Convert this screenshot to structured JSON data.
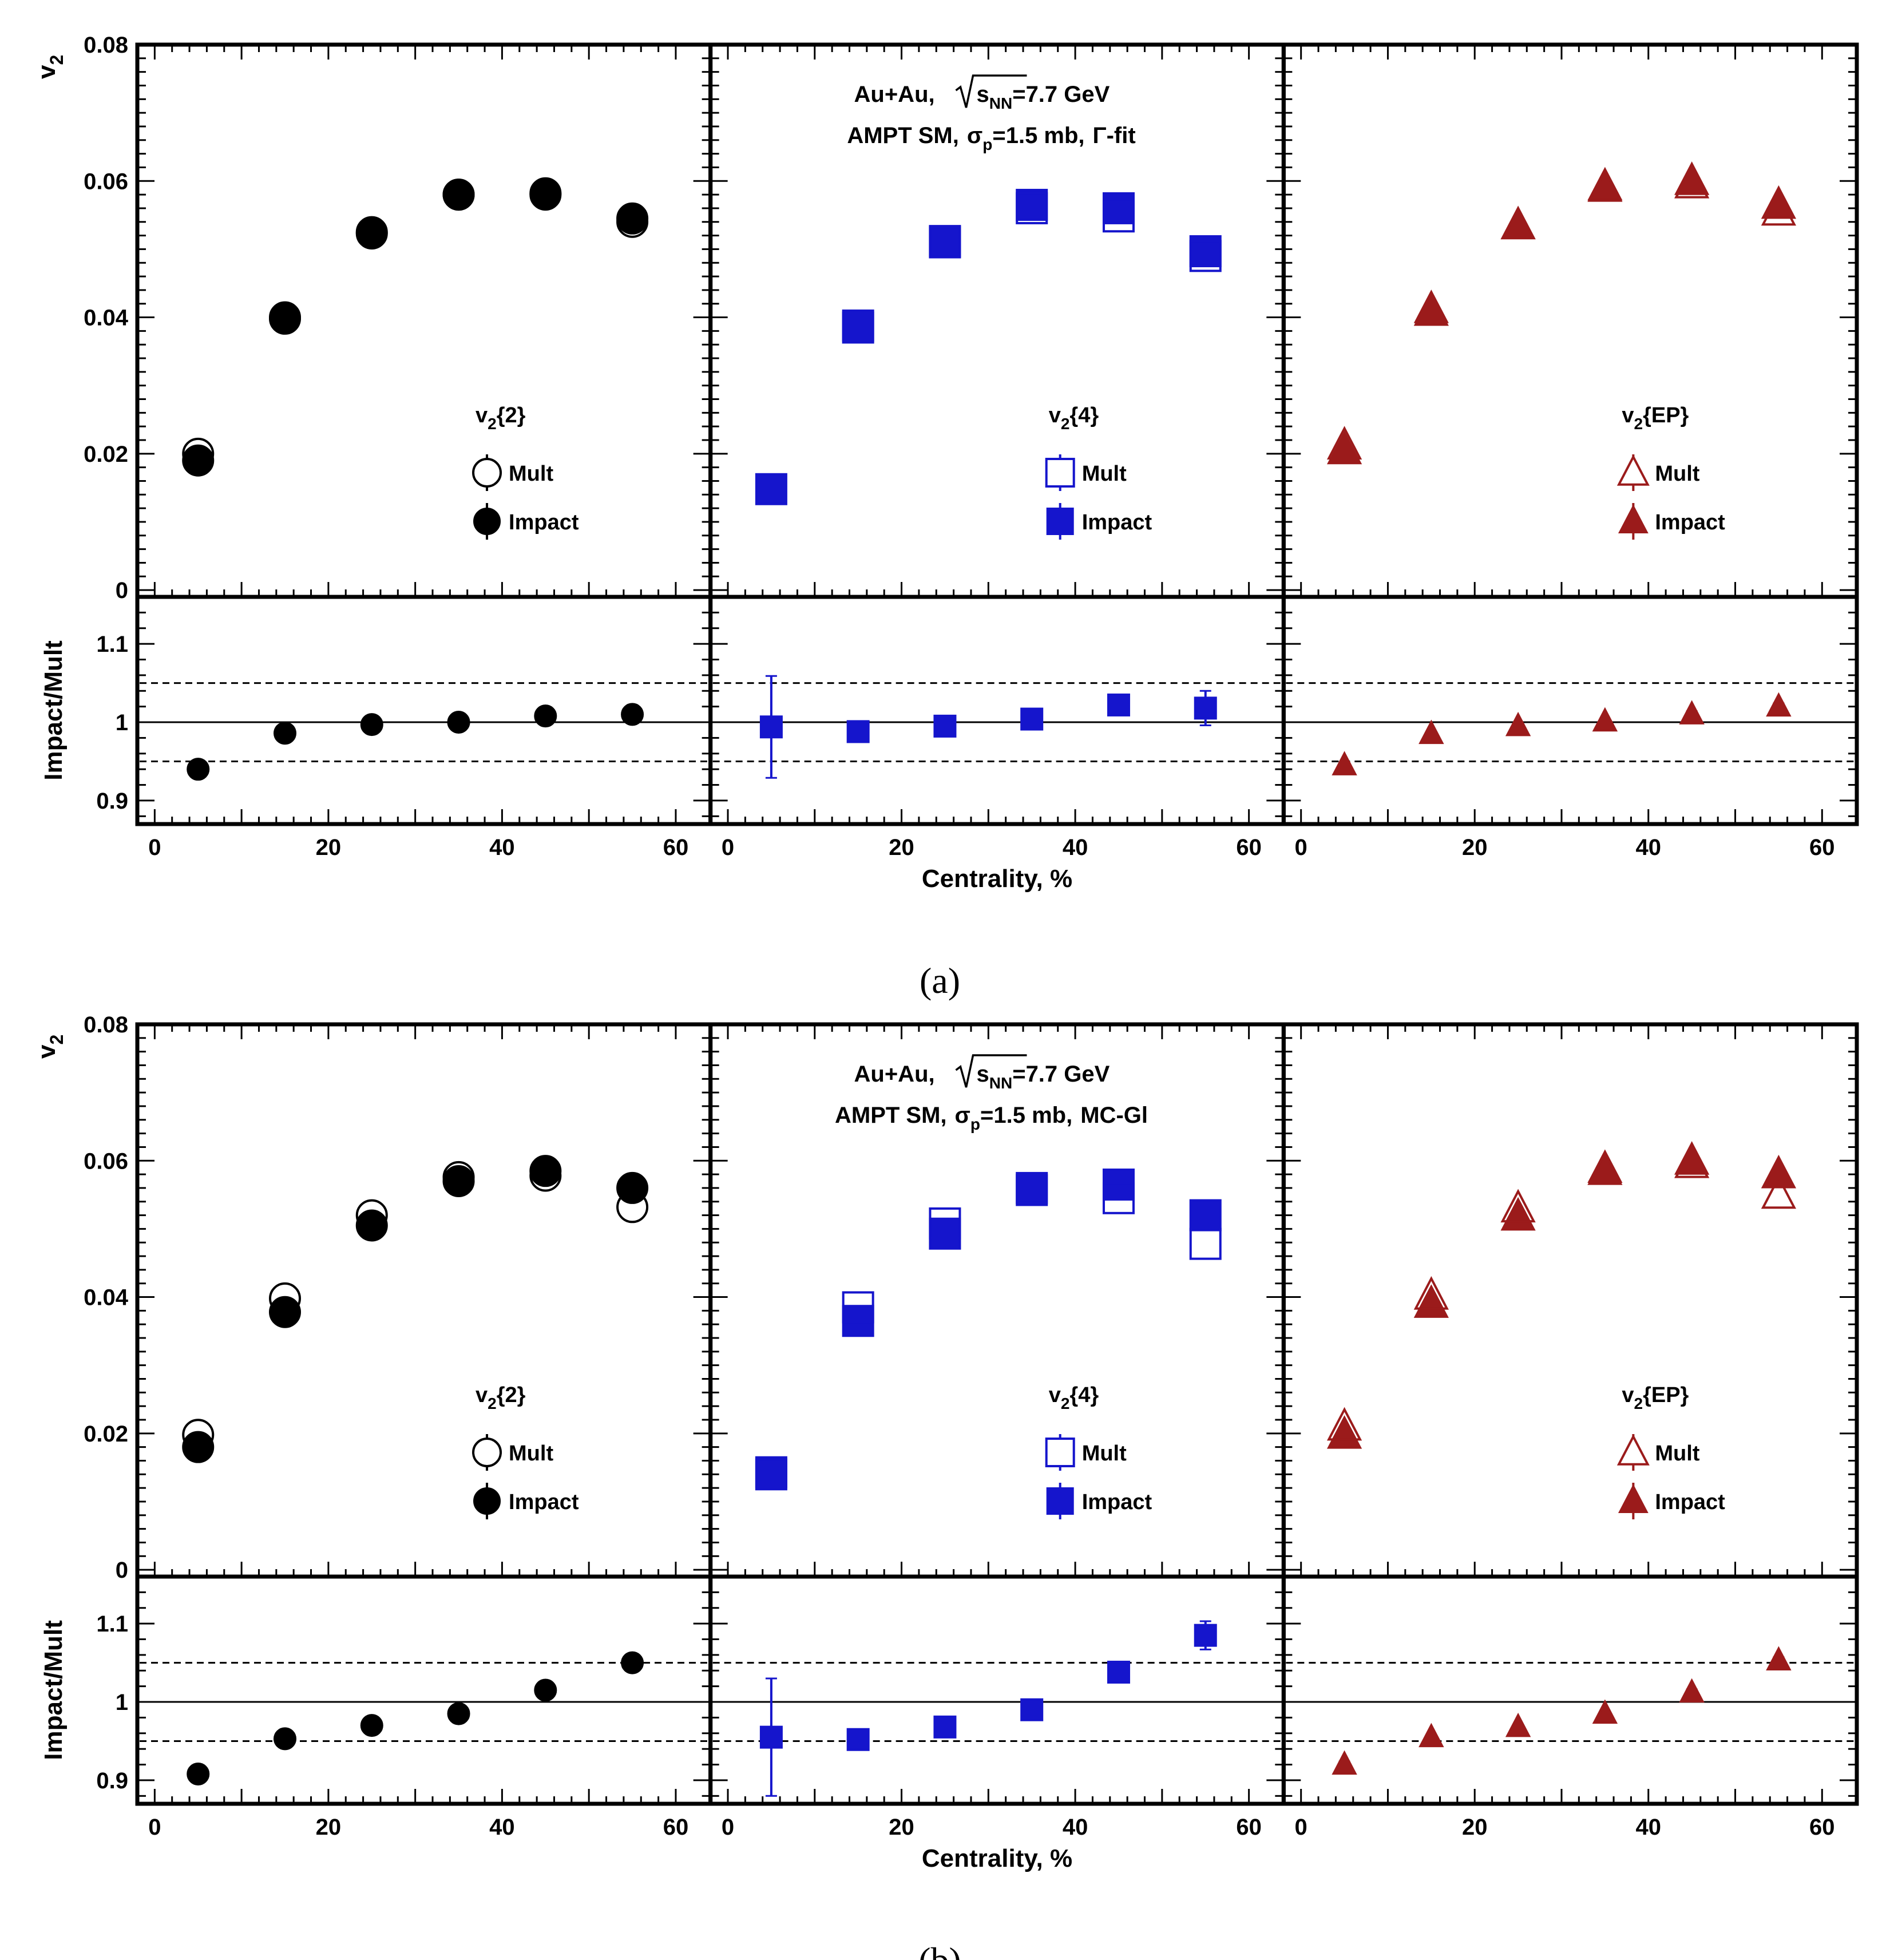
{
  "colors": {
    "v2_2": "#000000",
    "v2_4": "#1515cc",
    "v2_EP": "#9b1b1b",
    "frame": "#000000"
  },
  "chart_data": [
    {
      "type": "scatter",
      "caption": "(a)",
      "header": {
        "line1_system": "Au+Au,",
        "line1_sqrt_s": "s",
        "line1_sub": "NN",
        "line1_energy": "=7.7 GeV",
        "line2_model": "AMPT SM,",
        "line2_sigma": "σ",
        "line2_sub": "p",
        "line2_value": "=1.5 mb,",
        "line2_fit": "Γ-fit"
      },
      "ylabel_top": "v",
      "ylabel_top_sub": "2",
      "ylabel_bottom": "Impact/Mult",
      "xlabel": "Centrality, %",
      "xlim": [
        -2,
        64
      ],
      "ylim_top": [
        -0.001,
        0.08
      ],
      "ylim_bottom": [
        0.87,
        1.16
      ],
      "xticks": [
        "0",
        "20",
        "40",
        "60"
      ],
      "yticks_top": [
        "0",
        "0.02",
        "0.04",
        "0.06",
        "0.08"
      ],
      "yticks_bottom": [
        "0.9",
        "1",
        "1.1"
      ],
      "ref_lines": [
        1.0,
        0.95,
        1.05
      ],
      "x": [
        5,
        15,
        25,
        35,
        45,
        55
      ],
      "panels": [
        {
          "legend_title": "v",
          "legend_sub": "2",
          "legend_brace": "{2}",
          "marker": "circle",
          "color": "v2_2",
          "series": [
            {
              "name": "Mult",
              "values": [
                0.02,
                0.04,
                0.0525,
                0.058,
                0.058,
                0.054
              ]
            },
            {
              "name": "Impact",
              "values": [
                0.019,
                0.0398,
                0.0523,
                0.058,
                0.0582,
                0.0545
              ]
            }
          ],
          "ratio": [
            0.94,
            0.986,
            0.997,
            1.0,
            1.008,
            1.01
          ],
          "ratio_err": [
            0.005,
            0.004,
            0.003,
            0.003,
            0.004,
            0.005
          ]
        },
        {
          "legend_title": "v",
          "legend_sub": "2",
          "legend_brace": "{4}",
          "marker": "square",
          "color": "v2_4",
          "series": [
            {
              "name": "Mult",
              "values": [
                null,
                0.0388,
                0.051,
                0.056,
                0.0548,
                0.049
              ]
            },
            {
              "name": "Impact",
              "values": [
                0.0148,
                0.0385,
                0.0512,
                0.0565,
                0.056,
                0.0497
              ]
            }
          ],
          "ratio": [
            0.994,
            0.988,
            0.995,
            1.004,
            1.022,
            1.018
          ],
          "ratio_err": [
            0.065,
            0.004,
            0.004,
            0.004,
            0.005,
            0.022
          ]
        },
        {
          "legend_title": "v",
          "legend_sub": "2",
          "legend_brace": "{EP}",
          "marker": "triangle",
          "color": "v2_EP",
          "series": [
            {
              "name": "Mult",
              "values": [
                0.0212,
                0.0412,
                0.0535,
                0.059,
                0.0595,
                0.0555
              ]
            },
            {
              "name": "Impact",
              "values": [
                0.0205,
                0.0408,
                0.0535,
                0.0592,
                0.06,
                0.0565
              ]
            }
          ],
          "ratio": [
            0.945,
            0.985,
            0.995,
            1.001,
            1.01,
            1.02
          ],
          "ratio_err": [
            0.004,
            0.003,
            0.003,
            0.003,
            0.004,
            0.004
          ]
        }
      ]
    },
    {
      "type": "scatter",
      "caption": "(b)",
      "header": {
        "line1_system": "Au+Au,",
        "line1_sqrt_s": "s",
        "line1_sub": "NN",
        "line1_energy": "=7.7 GeV",
        "line2_model": "AMPT SM,",
        "line2_sigma": "σ",
        "line2_sub": "p",
        "line2_value": "=1.5 mb,",
        "line2_fit": "MC-Gl"
      },
      "ylabel_top": "v",
      "ylabel_top_sub": "2",
      "ylabel_bottom": "Impact/Mult",
      "xlabel": "Centrality, %",
      "xlim": [
        -2,
        64
      ],
      "ylim_top": [
        -0.001,
        0.08
      ],
      "ylim_bottom": [
        0.87,
        1.16
      ],
      "xticks": [
        "0",
        "20",
        "40",
        "60"
      ],
      "yticks_top": [
        "0",
        "0.02",
        "0.04",
        "0.06",
        "0.08"
      ],
      "yticks_bottom": [
        "0.9",
        "1",
        "1.1"
      ],
      "ref_lines": [
        1.0,
        0.95,
        1.05
      ],
      "x": [
        5,
        15,
        25,
        35,
        45,
        55
      ],
      "panels": [
        {
          "legend_title": "v",
          "legend_sub": "2",
          "legend_brace": "{2}",
          "marker": "circle",
          "color": "v2_2",
          "series": [
            {
              "name": "Mult",
              "values": [
                0.0198,
                0.0398,
                0.052,
                0.0576,
                0.0578,
                0.0532
              ]
            },
            {
              "name": "Impact",
              "values": [
                0.018,
                0.0378,
                0.0505,
                0.057,
                0.0585,
                0.056
              ]
            }
          ],
          "ratio": [
            0.908,
            0.953,
            0.97,
            0.985,
            1.015,
            1.05
          ],
          "ratio_err": [
            0.005,
            0.004,
            0.003,
            0.003,
            0.004,
            0.005
          ]
        },
        {
          "legend_title": "v",
          "legend_sub": "2",
          "legend_brace": "{4}",
          "marker": "square",
          "color": "v2_4",
          "series": [
            {
              "name": "Mult",
              "values": [
                0.0143,
                0.0385,
                0.0508,
                0.056,
                0.0545,
                0.0478
              ]
            },
            {
              "name": "Impact",
              "values": [
                0.014,
                0.0365,
                0.0493,
                0.0557,
                0.0565,
                0.052
              ]
            }
          ],
          "ratio": [
            0.955,
            0.952,
            0.968,
            0.99,
            1.038,
            1.085
          ],
          "ratio_err": [
            0.075,
            0.004,
            0.004,
            0.004,
            0.005,
            0.018
          ]
        },
        {
          "legend_title": "v",
          "legend_sub": "2",
          "legend_brace": "{EP}",
          "marker": "triangle",
          "color": "v2_EP",
          "series": [
            {
              "name": "Mult",
              "values": [
                0.021,
                0.0402,
                0.053,
                0.0588,
                0.0595,
                0.055
              ]
            },
            {
              "name": "Impact",
              "values": [
                0.0198,
                0.039,
                0.0518,
                0.0585,
                0.06,
                0.058
              ]
            }
          ],
          "ratio": [
            0.92,
            0.955,
            0.968,
            0.985,
            1.012,
            1.053
          ],
          "ratio_err": [
            0.004,
            0.003,
            0.003,
            0.003,
            0.004,
            0.004
          ]
        }
      ]
    }
  ]
}
